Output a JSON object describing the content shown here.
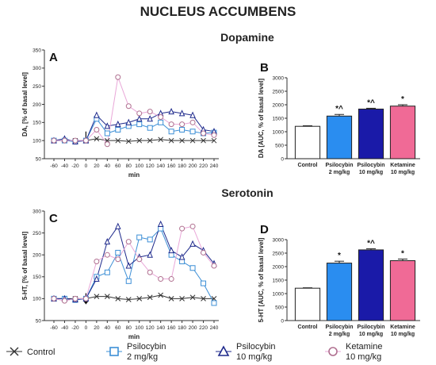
{
  "figure": {
    "title": "NUCLEUS ACCUMBENS",
    "section_dopamine": "Dopamine",
    "section_serotonin": "Serotonin"
  },
  "colors": {
    "control": "#333333",
    "psilo2": "#3d8fd6",
    "psilo2_fill": "#2a8df0",
    "psilo10": "#1f2a8c",
    "psilo10_fill": "#1a1aa8",
    "ketamine": "#b07090",
    "ketamine_fill": "#f06a96",
    "pink_line": "#e9a7d8",
    "teal_line": "#7cc9d6",
    "axis": "#333333"
  },
  "legend": [
    {
      "key": "control",
      "marker": "x",
      "label": "Control",
      "label2": ""
    },
    {
      "key": "psilo2",
      "marker": "square",
      "label": "Psilocybin",
      "label2": "2 mg/kg"
    },
    {
      "key": "psilo10",
      "marker": "triangle",
      "label": "Psilocybin",
      "label2": "10 mg/kg"
    },
    {
      "key": "ketamine",
      "marker": "circle",
      "label": "Ketamine",
      "label2": "10 mg/kg"
    }
  ],
  "chart_data": [
    {
      "panel": "A",
      "type": "line",
      "xlabel": "min",
      "ylabel": "DA, [% of basal level]",
      "x": [
        -60,
        -40,
        -20,
        0,
        20,
        40,
        60,
        80,
        100,
        120,
        140,
        160,
        180,
        200,
        220,
        240
      ],
      "xticks": [
        -60,
        -40,
        -20,
        0,
        20,
        40,
        60,
        80,
        100,
        120,
        140,
        160,
        180,
        200,
        220,
        240
      ],
      "ylim": [
        50,
        350
      ],
      "yticks": [
        50,
        100,
        150,
        200,
        250,
        300,
        350
      ],
      "arrow_at": 0,
      "series": [
        {
          "key": "control",
          "values": [
            100,
            100,
            100,
            100,
            105,
            100,
            100,
            98,
            100,
            100,
            103,
            100,
            100,
            100,
            100,
            100
          ]
        },
        {
          "key": "psilo2",
          "values": [
            100,
            100,
            97,
            100,
            160,
            120,
            130,
            140,
            145,
            135,
            150,
            125,
            130,
            125,
            120,
            122
          ]
        },
        {
          "key": "psilo10",
          "values": [
            100,
            105,
            97,
            100,
            170,
            140,
            145,
            150,
            160,
            160,
            175,
            180,
            175,
            170,
            130,
            125
          ]
        },
        {
          "key": "ketamine",
          "values": [
            100,
            100,
            100,
            100,
            130,
            90,
            275,
            195,
            175,
            180,
            165,
            145,
            145,
            150,
            120,
            115
          ]
        }
      ]
    },
    {
      "panel": "B",
      "type": "bar",
      "ylabel": "DA [AUC, % of basal level]",
      "ylim": [
        0,
        3000
      ],
      "yticks": [
        0,
        500,
        1000,
        1500,
        2000,
        2500,
        3000
      ],
      "categories": [
        {
          "key": "control",
          "label": "Control",
          "label2": ""
        },
        {
          "key": "psilo2",
          "label": "Psilocybin",
          "label2": "2 mg/kg"
        },
        {
          "key": "psilo10",
          "label": "Psilocybin",
          "label2": "10 mg/kg"
        },
        {
          "key": "ketamine",
          "label": "Ketamine",
          "label2": "10 mg/kg"
        }
      ],
      "values": [
        1200,
        1580,
        1840,
        1950
      ],
      "errors": [
        20,
        60,
        30,
        50
      ],
      "annotations": [
        "",
        "*^",
        "*^",
        "*"
      ]
    },
    {
      "panel": "C",
      "type": "line",
      "xlabel": "min",
      "ylabel": "5-HT, [% of basal level]",
      "x": [
        -60,
        -40,
        -20,
        0,
        20,
        40,
        60,
        80,
        100,
        120,
        140,
        160,
        180,
        200,
        220,
        240
      ],
      "xticks": [
        -60,
        -40,
        -20,
        0,
        20,
        40,
        60,
        80,
        100,
        120,
        140,
        160,
        180,
        200,
        220,
        240
      ],
      "ylim": [
        50,
        300
      ],
      "yticks": [
        50,
        100,
        150,
        200,
        250,
        300
      ],
      "arrow_at": 0,
      "series": [
        {
          "key": "control",
          "values": [
            100,
            100,
            100,
            100,
            105,
            105,
            100,
            98,
            100,
            103,
            108,
            100,
            100,
            103,
            100,
            100
          ]
        },
        {
          "key": "psilo2",
          "values": [
            100,
            100,
            97,
            100,
            150,
            160,
            205,
            140,
            240,
            235,
            260,
            200,
            185,
            170,
            135,
            90
          ]
        },
        {
          "key": "psilo10",
          "values": [
            100,
            100,
            98,
            100,
            145,
            230,
            265,
            175,
            195,
            200,
            270,
            210,
            195,
            225,
            210,
            180
          ]
        },
        {
          "key": "ketamine",
          "values": [
            100,
            95,
            100,
            100,
            185,
            200,
            190,
            230,
            190,
            160,
            145,
            145,
            260,
            265,
            205,
            175
          ]
        }
      ]
    },
    {
      "panel": "D",
      "type": "bar",
      "ylabel": "5-HT [AUC, % of basal level]",
      "ylim": [
        0,
        3000
      ],
      "yticks": [
        0,
        500,
        1000,
        1500,
        2000,
        2500,
        3000
      ],
      "categories": [
        {
          "key": "control",
          "label": "Control",
          "label2": ""
        },
        {
          "key": "psilo2",
          "label": "Psilocybin",
          "label2": "2 mg/kg"
        },
        {
          "key": "psilo10",
          "label": "Psilocybin",
          "label2": "10 mg/kg"
        },
        {
          "key": "ketamine",
          "label": "Ketamine",
          "label2": "10 mg/kg"
        }
      ],
      "values": [
        1200,
        2130,
        2620,
        2220
      ],
      "errors": [
        15,
        70,
        40,
        60
      ],
      "annotations": [
        "",
        "*",
        "*^",
        "*"
      ]
    }
  ]
}
